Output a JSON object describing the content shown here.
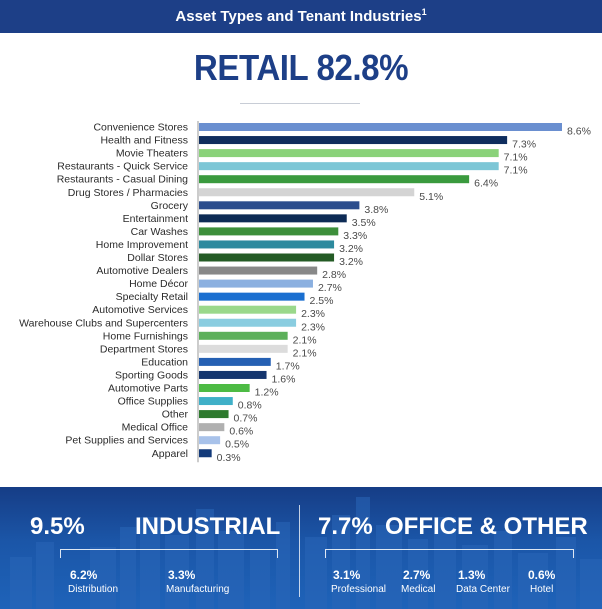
{
  "header": {
    "title": "Asset Types and Tenant Industries",
    "footnote": "1"
  },
  "retail": {
    "label": "RETAIL 82.8%"
  },
  "chart_data": {
    "type": "bar",
    "orientation": "horizontal",
    "categories": [
      "Convenience Stores",
      "Health and Fitness",
      "Movie Theaters",
      "Restaurants - Quick Service",
      "Restaurants - Casual Dining",
      "Drug Stores / Pharmacies",
      "Grocery",
      "Entertainment",
      "Car Washes",
      "Home Improvement",
      "Dollar Stores",
      "Automotive Dealers",
      "Home Décor",
      "Specialty Retail",
      "Automotive Services",
      "Warehouse Clubs and Supercenters",
      "Home Furnishings",
      "Department Stores",
      "Education",
      "Sporting Goods",
      "Automotive Parts",
      "Office Supplies",
      "Other",
      "Medical Office",
      "Pet Supplies and Services",
      "Apparel"
    ],
    "values": [
      8.6,
      7.3,
      7.1,
      7.1,
      6.4,
      5.1,
      3.8,
      3.5,
      3.3,
      3.2,
      3.2,
      2.8,
      2.7,
      2.5,
      2.3,
      2.3,
      2.1,
      2.1,
      1.7,
      1.6,
      1.2,
      0.8,
      0.7,
      0.6,
      0.5,
      0.3
    ],
    "value_labels": [
      "8.6%",
      "7.3%",
      "7.1%",
      "7.1%",
      "6.4%",
      "5.1%",
      "3.8%",
      "3.5%",
      "3.3%",
      "3.2%",
      "3.2%",
      "2.8%",
      "2.7%",
      "2.5%",
      "2.3%",
      "2.3%",
      "2.1%",
      "2.1%",
      "1.7%",
      "1.6%",
      "1.2%",
      "0.8%",
      "0.7%",
      "0.6%",
      "0.5%",
      "0.3%"
    ],
    "colors": [
      "#6a8fd0",
      "#0f2d5e",
      "#8ad27a",
      "#7cc6d6",
      "#3a9a3e",
      "#d4d4d4",
      "#2b4d8d",
      "#0d2b55",
      "#3d8f3b",
      "#2d8a9e",
      "#245b25",
      "#888888",
      "#8bb0e0",
      "#1a6fd0",
      "#9ad88b",
      "#8acde0",
      "#5cb05a",
      "#dcdcdc",
      "#2560b3",
      "#14356e",
      "#4dbb44",
      "#3fb0c8",
      "#2e7a2e",
      "#b0b0b0",
      "#a8c2ea",
      "#123a7a"
    ],
    "xlim": [
      0,
      9
    ],
    "grid": false
  },
  "industrial": {
    "pct": "9.5%",
    "label": "INDUSTRIAL",
    "items": [
      {
        "pct": "6.2%",
        "label": "Distribution"
      },
      {
        "pct": "3.3%",
        "label": "Manufacturing"
      }
    ]
  },
  "office": {
    "pct": "7.7%",
    "label": "OFFICE & OTHER",
    "items": [
      {
        "pct": "3.1%",
        "label": "Professional"
      },
      {
        "pct": "2.7%",
        "label": "Medical"
      },
      {
        "pct": "1.3%",
        "label": "Data Center"
      },
      {
        "pct": "0.6%",
        "label": "Hotel"
      }
    ]
  }
}
